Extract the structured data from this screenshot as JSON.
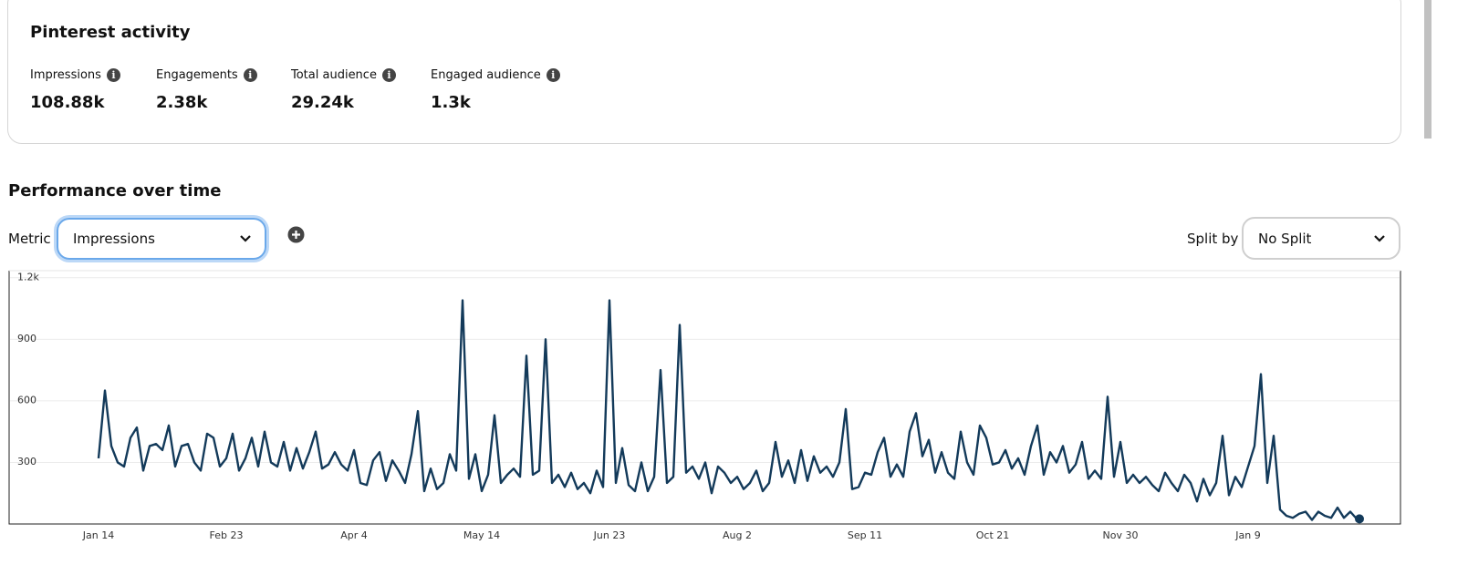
{
  "activity": {
    "title": "Pinterest activity",
    "metrics": [
      {
        "label": "Impressions",
        "value": "108.88k"
      },
      {
        "label": "Engagements",
        "value": "2.38k"
      },
      {
        "label": "Total audience",
        "value": "29.24k"
      },
      {
        "label": "Engaged audience",
        "value": "1.3k"
      }
    ]
  },
  "performance": {
    "title": "Performance over time",
    "metric_label": "Metric",
    "metric_value": "Impressions",
    "split_label": "Split by",
    "split_value": "No Split"
  },
  "chart_data": {
    "type": "line",
    "color": "#133a5a",
    "grid": true,
    "ylim": [
      0,
      1230
    ],
    "yticks": [
      300,
      600,
      900,
      {
        "value": 1200,
        "label": "1.2k"
      }
    ],
    "categories": [
      "Jan 14",
      null,
      null,
      null,
      null,
      null,
      null,
      null,
      null,
      null,
      null,
      null,
      null,
      null,
      null,
      null,
      null,
      null,
      null,
      null,
      "Feb 23",
      null,
      null,
      null,
      null,
      null,
      null,
      null,
      null,
      null,
      null,
      null,
      null,
      null,
      null,
      null,
      null,
      null,
      null,
      null,
      "Apr 4",
      null,
      null,
      null,
      null,
      null,
      null,
      null,
      null,
      null,
      null,
      null,
      null,
      null,
      null,
      null,
      null,
      null,
      null,
      null,
      "May 14",
      null,
      null,
      null,
      null,
      null,
      null,
      null,
      null,
      null,
      null,
      null,
      null,
      null,
      null,
      null,
      null,
      null,
      null,
      null,
      "Jun 23",
      null,
      null,
      null,
      null,
      null,
      null,
      null,
      null,
      null,
      null,
      null,
      null,
      null,
      null,
      null,
      null,
      null,
      null,
      null,
      "Aug 2",
      null,
      null,
      null,
      null,
      null,
      null,
      null,
      null,
      null,
      null,
      null,
      null,
      null,
      null,
      null,
      null,
      null,
      null,
      null,
      "Sep 11",
      null,
      null,
      null,
      null,
      null,
      null,
      null,
      null,
      null,
      null,
      null,
      null,
      null,
      null,
      null,
      null,
      null,
      null,
      null,
      "Oct 21",
      null,
      null,
      null,
      null,
      null,
      null,
      null,
      null,
      null,
      null,
      null,
      null,
      null,
      null,
      null,
      null,
      null,
      null,
      null,
      "Nov 30",
      null,
      null,
      null,
      null,
      null,
      null,
      null,
      null,
      null,
      null,
      null,
      null,
      null,
      null,
      null,
      null,
      null,
      null,
      null,
      "Jan 9",
      null,
      null,
      null,
      null,
      null,
      null,
      null,
      null,
      null,
      null,
      null,
      null,
      null,
      null,
      null,
      null,
      null
    ],
    "values": [
      320,
      650,
      380,
      300,
      280,
      420,
      470,
      260,
      380,
      390,
      360,
      480,
      280,
      380,
      390,
      300,
      260,
      440,
      420,
      280,
      320,
      440,
      260,
      320,
      420,
      280,
      450,
      300,
      280,
      400,
      260,
      370,
      270,
      350,
      450,
      270,
      290,
      350,
      290,
      260,
      360,
      200,
      190,
      310,
      350,
      210,
      310,
      260,
      200,
      340,
      550,
      160,
      270,
      170,
      200,
      340,
      260,
      1090,
      220,
      340,
      160,
      240,
      530,
      200,
      240,
      270,
      230,
      820,
      240,
      260,
      900,
      200,
      240,
      180,
      250,
      170,
      200,
      150,
      260,
      180,
      1090,
      200,
      370,
      190,
      160,
      300,
      160,
      230,
      750,
      200,
      230,
      970,
      250,
      280,
      220,
      300,
      150,
      280,
      250,
      200,
      230,
      170,
      200,
      260,
      160,
      200,
      400,
      230,
      310,
      200,
      360,
      210,
      330,
      250,
      280,
      230,
      300,
      560,
      170,
      180,
      250,
      240,
      350,
      420,
      230,
      290,
      230,
      450,
      540,
      330,
      410,
      250,
      350,
      250,
      220,
      450,
      300,
      240,
      480,
      420,
      290,
      300,
      360,
      270,
      320,
      240,
      380,
      480,
      240,
      350,
      300,
      380,
      250,
      290,
      400,
      220,
      260,
      220,
      620,
      230,
      400,
      200,
      240,
      200,
      230,
      190,
      160,
      250,
      200,
      160,
      240,
      200,
      110,
      220,
      140,
      200,
      430,
      140,
      230,
      180,
      280,
      380,
      730,
      200,
      430,
      70,
      40,
      30,
      50,
      60,
      20,
      60,
      40,
      30,
      80,
      30,
      60,
      25
    ]
  }
}
